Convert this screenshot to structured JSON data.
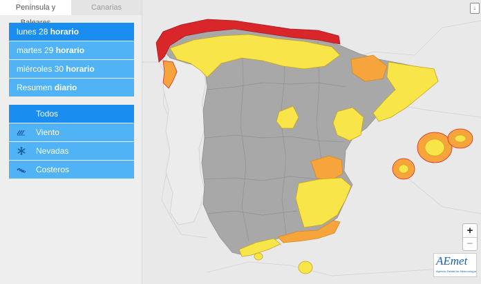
{
  "tabs": [
    {
      "label": "Península y Baleares",
      "active": true
    },
    {
      "label": "Canarias",
      "active": false
    }
  ],
  "days": [
    {
      "prefix": "lunes 28",
      "suffix": "horario",
      "selected": true
    },
    {
      "prefix": "martes 29",
      "suffix": "horario",
      "selected": false
    },
    {
      "prefix": "miércoles 30",
      "suffix": "horario",
      "selected": false
    },
    {
      "prefix": "Resumen",
      "suffix": "diario",
      "selected": false
    }
  ],
  "types": [
    {
      "label": "Todos",
      "icon": "",
      "selected": true
    },
    {
      "label": "Viento",
      "icon": "wind-icon",
      "selected": false
    },
    {
      "label": "Nevadas",
      "icon": "snowflake-icon",
      "selected": false
    },
    {
      "label": "Costeros",
      "icon": "waves-icon",
      "selected": false
    }
  ],
  "zoom": {
    "in": "+",
    "out": "−"
  },
  "logo": {
    "main": "AEmet",
    "sub": "Agencia Estatal de Meteorología"
  },
  "colors": {
    "warning_red": "#d9262b",
    "warning_orange": "#f7a43c",
    "warning_yellow": "#f7e54a",
    "no_warning": "#a9a9a9",
    "menu_selected": "#1a8ef0",
    "menu_item": "#4fb3f6"
  }
}
